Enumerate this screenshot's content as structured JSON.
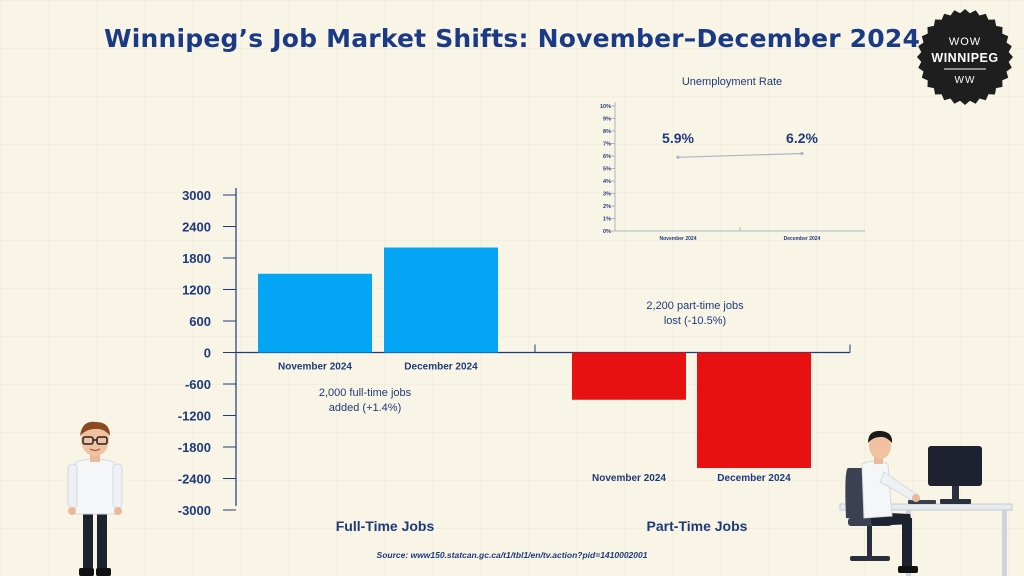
{
  "title": "Winnipeg’s Job Market Shifts: November–December 2024",
  "badge": {
    "line1": "WOW",
    "line2": "WINNIPEG",
    "line3": "WW",
    "bg": "#1e1e1e",
    "fg": "#ffffff"
  },
  "colors": {
    "full_time": "#04a5f5",
    "part_time": "#e81111",
    "axis": "#1f3a7a",
    "inset_line": "#a9b6c8"
  },
  "annotations": {
    "full_time_line1": "2,000 full-time jobs",
    "full_time_line2": "added (+1.4%)",
    "part_time_line1": "2,200 part-time jobs",
    "part_time_line2": "lost (-10.5%)"
  },
  "labels": {
    "full_time": "Full-Time Jobs",
    "part_time": "Part-Time Jobs"
  },
  "source": "Source: www150.statcan.gc.ca/t1/tbl1/en/tv.action?pid=1410002001",
  "chart_data": [
    {
      "type": "bar",
      "categories": [
        "November 2024",
        "December 2024"
      ],
      "groups": [
        "Full-Time Jobs",
        "Part-Time Jobs"
      ],
      "series": [
        {
          "name": "Full-Time Jobs",
          "values": [
            1500,
            2000
          ]
        },
        {
          "name": "Part-Time Jobs",
          "values": [
            -900,
            -2200
          ]
        }
      ],
      "y_ticks": [
        "3000",
        "2400",
        "1800",
        "1200",
        "600",
        "0",
        "-600",
        "-1200",
        "-1800",
        "-2400",
        "-3000"
      ],
      "ylim": [
        -3000,
        3000
      ],
      "grid": false
    },
    {
      "type": "line",
      "title": "Unemployment Rate",
      "categories": [
        "November 2024",
        "December 2024"
      ],
      "values": [
        5.9,
        6.2
      ],
      "data_labels": [
        "5.9%",
        "6.2%"
      ],
      "y_ticks": [
        "0%",
        "1%",
        "2%",
        "3%",
        "4%",
        "5%",
        "6%",
        "7%",
        "8%",
        "9%",
        "10%"
      ],
      "ylim": [
        0,
        10
      ],
      "grid": false
    }
  ]
}
